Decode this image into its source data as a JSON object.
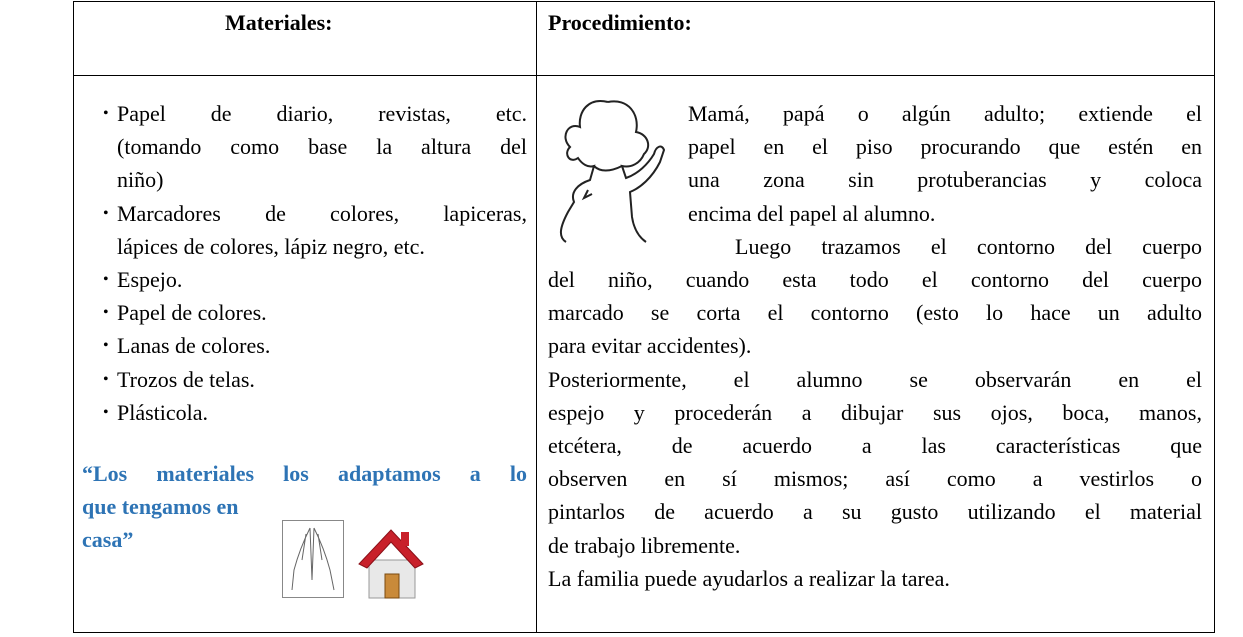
{
  "header": {
    "materials": "Materiales:",
    "procedure": "Procedimiento:"
  },
  "materials": {
    "items": [
      [
        "Papel de diario, revistas, etc.",
        "(tomando como base la altura del",
        "niño)"
      ],
      [
        "Marcadores de colores, lapiceras,",
        "lápices de colores, lápiz negro, etc."
      ],
      [
        "Espejo."
      ],
      [
        "Papel de colores."
      ],
      [
        "Lanas de colores."
      ],
      [
        "Trozos de telas."
      ],
      [
        "Plásticola."
      ]
    ],
    "note_lines": [
      "“Los materiales los adaptamos a lo",
      "que tengamos en",
      "casa”"
    ]
  },
  "procedure": {
    "paragraphs": [
      [
        "Mamá, papá o algún adulto; extiende el",
        "papel en el piso procurando que estén en",
        "una zona sin protuberancias y coloca",
        "encima del papel al alumno."
      ],
      [
        "Luego trazamos el contorno del cuerpo",
        "del niño, cuando esta todo el contorno del cuerpo",
        "marcado se corta el contorno (esto lo hace un adulto",
        "para evitar accidentes)."
      ],
      [
        "Posteriormente, el alumno se observarán en el",
        "espejo y procederán a dibujar sus ojos, boca, manos,",
        "etcétera, de acuerdo a las características que",
        "observen en sí mismos; así como a vestirlos o",
        "pintarlos de acuerdo a su gusto utilizando el material",
        "de trabajo libremente."
      ],
      [
        "La familia puede ayudarlos a realizar la tarea."
      ]
    ]
  }
}
